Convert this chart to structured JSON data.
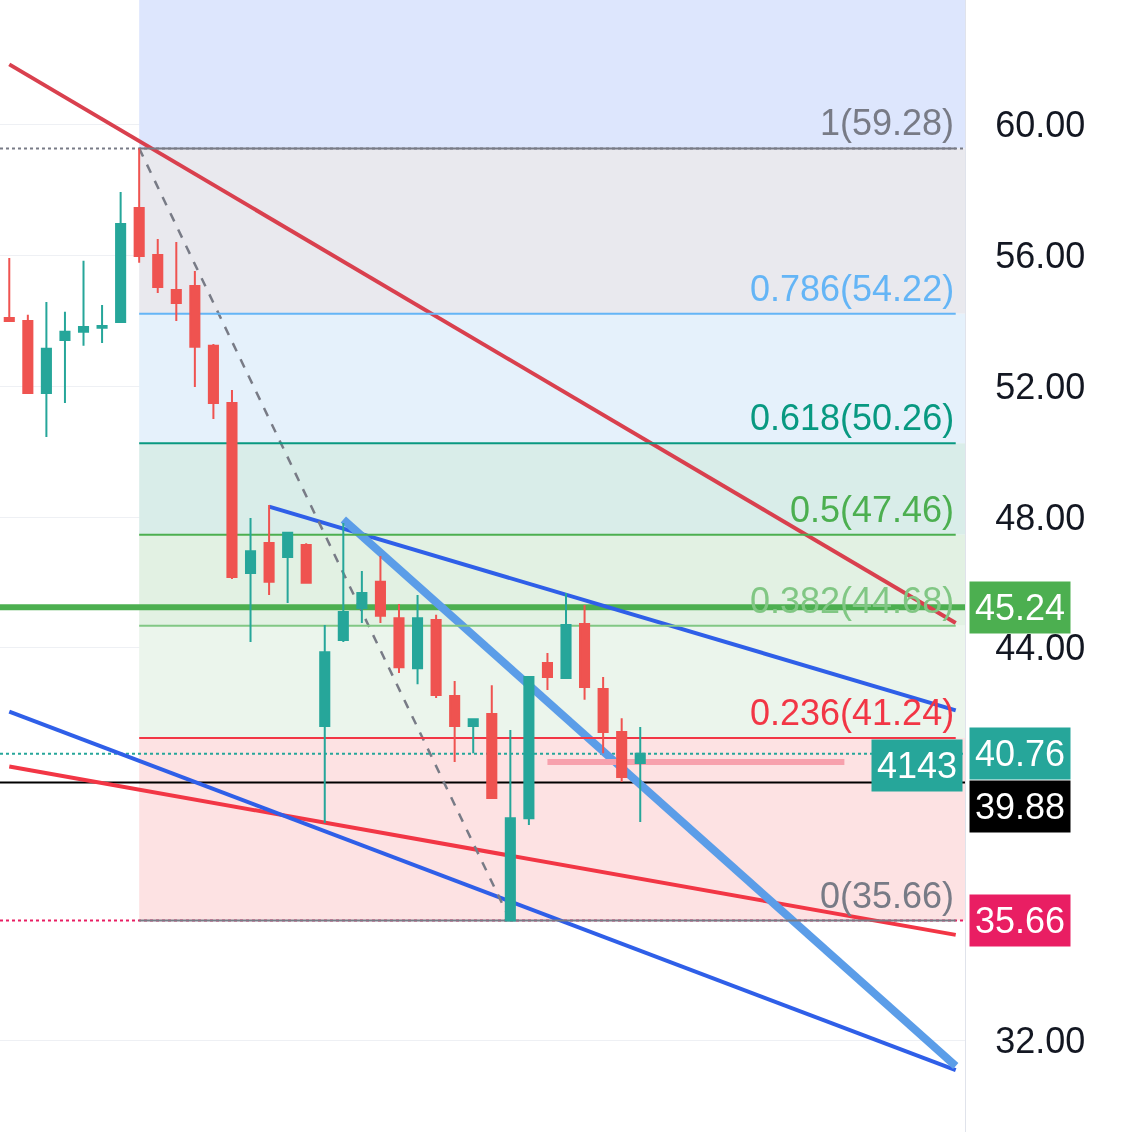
{
  "chart_data": {
    "type": "candlestick",
    "categories": [
      null,
      null,
      null,
      null,
      null,
      null,
      null,
      null,
      null,
      null,
      null,
      null,
      null,
      null,
      null,
      null,
      null,
      null,
      null,
      null,
      null,
      null,
      null,
      null,
      null,
      null,
      null,
      null,
      null,
      null,
      null,
      null,
      null,
      null,
      null,
      null,
      null,
      null,
      null,
      null,
      null,
      null,
      null,
      null,
      null,
      null,
      null,
      null,
      null,
      null,
      null,
      null
    ],
    "ohlc": [
      [
        54.09,
        55.93,
        54.0,
        54.0
      ],
      [
        54.0,
        54.19,
        51.8,
        51.8
      ],
      [
        51.8,
        54.58,
        50.45,
        53.15
      ],
      [
        53.42,
        54.28,
        51.49,
        53.67
      ],
      [
        53.67,
        55.84,
        53.24,
        53.82
      ],
      [
        53.79,
        54.49,
        53.33,
        53.85
      ],
      [
        53.97,
        57.95,
        53.97,
        56.97
      ],
      [
        57.46,
        59.28,
        55.78,
        55.99
      ],
      [
        56.02,
        56.51,
        54.86,
        55.04
      ],
      [
        54.95,
        56.42,
        54.0,
        54.55
      ],
      [
        55.07,
        55.53,
        51.98,
        53.21
      ],
      [
        53.24,
        53.3,
        51.0,
        51.49
      ],
      [
        51.49,
        51.89,
        46.11,
        46.17
      ],
      [
        46.29,
        47.97,
        44.18,
        46.96
      ],
      [
        47.21,
        48.37,
        45.62,
        46.02
      ],
      [
        46.78,
        47.55,
        45.37,
        47.52
      ],
      [
        47.15,
        47.2,
        45.96,
        45.99
      ],
      [
        41.61,
        44.7,
        38.64,
        43.87
      ],
      [
        44.24,
        47.82,
        44.18,
        45.1
      ],
      [
        45.22,
        46.35,
        44.76,
        45.68
      ],
      [
        46.02,
        46.81,
        44.76,
        44.98
      ],
      [
        44.91,
        45.34,
        43.23,
        43.41
      ],
      [
        43.38,
        45.62,
        42.89,
        44.91
      ],
      [
        44.85,
        45.01,
        42.47,
        42.56
      ],
      [
        42.53,
        42.99,
        40.51,
        41.61
      ],
      [
        41.61,
        41.82,
        40.78,
        41.82
      ],
      [
        41.98,
        42.86,
        39.41,
        39.41
      ],
      [
        35.66,
        41.49,
        35.66,
        38.79
      ],
      [
        38.79,
        43.11,
        38.58,
        43.11
      ],
      [
        43.54,
        43.84,
        42.71,
        43.11
      ],
      [
        43.08,
        45.68,
        43.08,
        44.7
      ],
      [
        44.73,
        45.31,
        42.41,
        42.8
      ],
      [
        42.74,
        43.11,
        40.78,
        41.43
      ],
      [
        41.43,
        41.85,
        39.9,
        40.05
      ],
      [
        40.48,
        41.58,
        38.67,
        40.76
      ],
      null,
      null,
      null,
      null,
      null,
      null,
      null,
      null,
      null,
      null,
      null,
      null,
      null,
      null,
      null,
      null,
      null
    ],
    "series": [
      {
        "type": "line",
        "color": "#d9404e",
        "values": [
          61.85,
          null,
          null,
          null,
          null,
          null,
          null,
          null,
          null,
          null,
          null,
          null,
          null,
          null,
          null,
          null,
          null,
          null,
          null,
          null,
          null,
          null,
          null,
          null,
          null,
          null,
          null,
          null,
          null,
          null,
          null,
          null,
          null,
          null,
          null,
          null,
          null,
          null,
          null,
          null,
          null,
          null,
          null,
          null,
          null,
          null,
          null,
          null,
          null,
          null,
          null,
          44.76
        ]
      },
      {
        "type": "line",
        "color": "#f23645",
        "values": [
          40.37,
          null,
          null,
          null,
          null,
          null,
          null,
          null,
          null,
          null,
          null,
          null,
          null,
          null,
          null,
          null,
          null,
          null,
          null,
          null,
          null,
          null,
          null,
          null,
          null,
          null,
          null,
          null,
          null,
          null,
          null,
          null,
          null,
          null,
          null,
          null,
          null,
          null,
          null,
          null,
          null,
          null,
          null,
          null,
          null,
          null,
          null,
          null,
          null,
          null,
          null,
          35.22
        ]
      },
      {
        "type": "line",
        "color": "#2f5fe8",
        "values": [
          42.05,
          null,
          null,
          null,
          null,
          null,
          null,
          null,
          null,
          null,
          null,
          null,
          null,
          null,
          null,
          null,
          null,
          null,
          null,
          null,
          null,
          null,
          null,
          null,
          null,
          null,
          null,
          null,
          null,
          null,
          null,
          null,
          null,
          null,
          null,
          null,
          null,
          null,
          null,
          null,
          null,
          null,
          null,
          null,
          null,
          null,
          null,
          null,
          null,
          null,
          null,
          31.08
        ]
      },
      {
        "type": "line",
        "color": "#2f5fe8",
        "values": [
          null,
          null,
          null,
          null,
          null,
          null,
          null,
          null,
          null,
          null,
          null,
          null,
          null,
          null,
          48.32,
          null,
          null,
          null,
          null,
          null,
          null,
          null,
          null,
          null,
          null,
          null,
          null,
          null,
          null,
          null,
          null,
          null,
          null,
          null,
          null,
          null,
          null,
          null,
          null,
          null,
          null,
          null,
          null,
          null,
          null,
          null,
          null,
          null,
          null,
          null,
          null,
          42.09
        ]
      },
      {
        "type": "line",
        "color": "#5b9de8",
        "values": [
          null,
          null,
          null,
          null,
          null,
          null,
          null,
          null,
          null,
          null,
          null,
          null,
          null,
          null,
          null,
          null,
          null,
          null,
          47.93,
          null,
          null,
          null,
          null,
          null,
          null,
          null,
          null,
          null,
          null,
          null,
          null,
          null,
          null,
          null,
          null,
          null,
          null,
          null,
          null,
          null,
          null,
          null,
          null,
          null,
          null,
          null,
          null,
          null,
          null,
          null,
          null,
          31.21
        ]
      },
      {
        "type": "line",
        "color": "#787b86",
        "line_style": "dashed",
        "values": [
          null,
          null,
          null,
          null,
          null,
          null,
          null,
          59.28,
          null,
          null,
          null,
          null,
          null,
          null,
          null,
          null,
          null,
          null,
          null,
          null,
          null,
          null,
          null,
          null,
          null,
          null,
          null,
          35.66,
          null,
          null,
          null,
          null,
          null,
          null,
          null,
          null,
          null,
          null,
          null,
          null,
          null,
          null,
          null,
          null,
          null,
          null,
          null,
          null,
          null,
          null,
          null,
          null
        ]
      },
      {
        "type": "line",
        "color": "#f7a1ad",
        "values": [
          null,
          null,
          null,
          null,
          null,
          null,
          null,
          null,
          null,
          null,
          null,
          null,
          null,
          null,
          null,
          null,
          null,
          null,
          null,
          null,
          null,
          null,
          null,
          null,
          null,
          null,
          null,
          null,
          null,
          40.51,
          null,
          null,
          null,
          null,
          null,
          null,
          null,
          null,
          null,
          null,
          null,
          null,
          null,
          null,
          null,
          40.51,
          null,
          null,
          null,
          null,
          null,
          null
        ]
      },
      {
        "type": "line",
        "color": "#787b86",
        "values": [
          null,
          null,
          null,
          null,
          null,
          null,
          null,
          59.28,
          null,
          null,
          null,
          null,
          null,
          null,
          null,
          null,
          null,
          null,
          null,
          null,
          null,
          null,
          null,
          null,
          null,
          null,
          null,
          null,
          null,
          null,
          null,
          null,
          null,
          null,
          null,
          null,
          null,
          null,
          null,
          null,
          null,
          null,
          null,
          null,
          null,
          null,
          null,
          null,
          null,
          null,
          null,
          59.28
        ],
        "value_labels": [
          null,
          null,
          null,
          null,
          null,
          null,
          null,
          null,
          null,
          null,
          null,
          null,
          null,
          null,
          null,
          null,
          null,
          null,
          null,
          null,
          null,
          null,
          null,
          null,
          null,
          null,
          null,
          null,
          null,
          null,
          null,
          null,
          null,
          null,
          null,
          null,
          null,
          null,
          null,
          null,
          null,
          null,
          null,
          null,
          null,
          null,
          null,
          null,
          null,
          null,
          null,
          "1(59.28)"
        ]
      },
      {
        "type": "line",
        "color": "#64b5f6",
        "values": [
          null,
          null,
          null,
          null,
          null,
          null,
          null,
          54.22,
          null,
          null,
          null,
          null,
          null,
          null,
          null,
          null,
          null,
          null,
          null,
          null,
          null,
          null,
          null,
          null,
          null,
          null,
          null,
          null,
          null,
          null,
          null,
          null,
          null,
          null,
          null,
          null,
          null,
          null,
          null,
          null,
          null,
          null,
          null,
          null,
          null,
          null,
          null,
          null,
          null,
          null,
          null,
          54.22
        ],
        "value_labels": [
          null,
          null,
          null,
          null,
          null,
          null,
          null,
          null,
          null,
          null,
          null,
          null,
          null,
          null,
          null,
          null,
          null,
          null,
          null,
          null,
          null,
          null,
          null,
          null,
          null,
          null,
          null,
          null,
          null,
          null,
          null,
          null,
          null,
          null,
          null,
          null,
          null,
          null,
          null,
          null,
          null,
          null,
          null,
          null,
          null,
          null,
          null,
          null,
          null,
          null,
          null,
          "0.786(54.22)"
        ]
      },
      {
        "type": "line",
        "color": "#089981",
        "values": [
          null,
          null,
          null,
          null,
          null,
          null,
          null,
          50.26,
          null,
          null,
          null,
          null,
          null,
          null,
          null,
          null,
          null,
          null,
          null,
          null,
          null,
          null,
          null,
          null,
          null,
          null,
          null,
          null,
          null,
          null,
          null,
          null,
          null,
          null,
          null,
          null,
          null,
          null,
          null,
          null,
          null,
          null,
          null,
          null,
          null,
          null,
          null,
          null,
          null,
          null,
          null,
          50.26
        ],
        "value_labels": [
          null,
          null,
          null,
          null,
          null,
          null,
          null,
          null,
          null,
          null,
          null,
          null,
          null,
          null,
          null,
          null,
          null,
          null,
          null,
          null,
          null,
          null,
          null,
          null,
          null,
          null,
          null,
          null,
          null,
          null,
          null,
          null,
          null,
          null,
          null,
          null,
          null,
          null,
          null,
          null,
          null,
          null,
          null,
          null,
          null,
          null,
          null,
          null,
          null,
          null,
          null,
          "0.618(50.26)"
        ]
      },
      {
        "type": "line",
        "color": "#4caf50",
        "values": [
          null,
          null,
          null,
          null,
          null,
          null,
          null,
          47.46,
          null,
          null,
          null,
          null,
          null,
          null,
          null,
          null,
          null,
          null,
          null,
          null,
          null,
          null,
          null,
          null,
          null,
          null,
          null,
          null,
          null,
          null,
          null,
          null,
          null,
          null,
          null,
          null,
          null,
          null,
          null,
          null,
          null,
          null,
          null,
          null,
          null,
          null,
          null,
          null,
          null,
          null,
          null,
          47.46
        ],
        "value_labels": [
          null,
          null,
          null,
          null,
          null,
          null,
          null,
          null,
          null,
          null,
          null,
          null,
          null,
          null,
          null,
          null,
          null,
          null,
          null,
          null,
          null,
          null,
          null,
          null,
          null,
          null,
          null,
          null,
          null,
          null,
          null,
          null,
          null,
          null,
          null,
          null,
          null,
          null,
          null,
          null,
          null,
          null,
          null,
          null,
          null,
          null,
          null,
          null,
          null,
          null,
          null,
          "0.5(47.46)"
        ]
      },
      {
        "type": "line",
        "color": "#81c784",
        "values": [
          null,
          null,
          null,
          null,
          null,
          null,
          null,
          44.68,
          null,
          null,
          null,
          null,
          null,
          null,
          null,
          null,
          null,
          null,
          null,
          null,
          null,
          null,
          null,
          null,
          null,
          null,
          null,
          null,
          null,
          null,
          null,
          null,
          null,
          null,
          null,
          null,
          null,
          null,
          null,
          null,
          null,
          null,
          null,
          null,
          null,
          null,
          null,
          null,
          null,
          null,
          null,
          44.68
        ],
        "value_labels": [
          null,
          null,
          null,
          null,
          null,
          null,
          null,
          null,
          null,
          null,
          null,
          null,
          null,
          null,
          null,
          null,
          null,
          null,
          null,
          null,
          null,
          null,
          null,
          null,
          null,
          null,
          null,
          null,
          null,
          null,
          null,
          null,
          null,
          null,
          null,
          null,
          null,
          null,
          null,
          null,
          null,
          null,
          null,
          null,
          null,
          null,
          null,
          null,
          null,
          null,
          null,
          "0.382(44.68)"
        ]
      },
      {
        "type": "line",
        "color": "#f23645",
        "values": [
          null,
          null,
          null,
          null,
          null,
          null,
          null,
          41.24,
          null,
          null,
          null,
          null,
          null,
          null,
          null,
          null,
          null,
          null,
          null,
          null,
          null,
          null,
          null,
          null,
          null,
          null,
          null,
          null,
          null,
          null,
          null,
          null,
          null,
          null,
          null,
          null,
          null,
          null,
          null,
          null,
          null,
          null,
          null,
          null,
          null,
          null,
          null,
          null,
          null,
          null,
          null,
          41.24
        ],
        "value_labels": [
          null,
          null,
          null,
          null,
          null,
          null,
          null,
          null,
          null,
          null,
          null,
          null,
          null,
          null,
          null,
          null,
          null,
          null,
          null,
          null,
          null,
          null,
          null,
          null,
          null,
          null,
          null,
          null,
          null,
          null,
          null,
          null,
          null,
          null,
          null,
          null,
          null,
          null,
          null,
          null,
          null,
          null,
          null,
          null,
          null,
          null,
          null,
          null,
          null,
          null,
          null,
          "0.236(41.24)"
        ]
      },
      {
        "type": "line",
        "color": "#787b86",
        "values": [
          null,
          null,
          null,
          null,
          null,
          null,
          null,
          35.66,
          null,
          null,
          null,
          null,
          null,
          null,
          null,
          null,
          null,
          null,
          null,
          null,
          null,
          null,
          null,
          null,
          null,
          null,
          null,
          null,
          null,
          null,
          null,
          null,
          null,
          null,
          null,
          null,
          null,
          null,
          null,
          null,
          null,
          null,
          null,
          null,
          null,
          null,
          null,
          null,
          null,
          null,
          null,
          35.66
        ],
        "value_labels": [
          null,
          null,
          null,
          null,
          null,
          null,
          null,
          null,
          null,
          null,
          null,
          null,
          null,
          null,
          null,
          null,
          null,
          null,
          null,
          null,
          null,
          null,
          null,
          null,
          null,
          null,
          null,
          null,
          null,
          null,
          null,
          null,
          null,
          null,
          null,
          null,
          null,
          null,
          null,
          null,
          null,
          null,
          null,
          null,
          null,
          null,
          null,
          null,
          null,
          null,
          null,
          "0(35.66)"
        ]
      }
    ],
    "bands": [
      {
        "axis": "y",
        "from": 59.28,
        "to": 63.82,
        "color": "#dde6fd"
      },
      {
        "axis": "y",
        "from": 54.22,
        "to": 59.28,
        "color": "#e9e9ee"
      },
      {
        "axis": "y",
        "from": 50.26,
        "to": 54.22,
        "color": "#e5f1fb"
      },
      {
        "axis": "y",
        "from": 47.46,
        "to": 50.26,
        "color": "#d9ede9"
      },
      {
        "axis": "y",
        "from": 44.68,
        "to": 47.46,
        "color": "#e2f1e3"
      },
      {
        "axis": "y",
        "from": 41.24,
        "to": 44.68,
        "color": "#ebf5ec"
      },
      {
        "axis": "y",
        "from": 35.66,
        "to": 41.24,
        "color": "#fde2e3"
      }
    ],
    "ref_lines": [
      {
        "axis": "y",
        "value": 45.24,
        "label": "45.24",
        "color": "#4caf50",
        "line_style": "solid"
      },
      {
        "axis": "y",
        "value": 40.76,
        "label": "40.76",
        "color": "#26a69a",
        "line_style": "dotted"
      },
      {
        "axis": "y",
        "value": 39.88,
        "label": "39.88",
        "color": "#000000",
        "line_style": "solid"
      },
      {
        "axis": "y",
        "value": 35.66,
        "label": "35.66",
        "color": "#e91e63",
        "line_style": "dotted"
      },
      {
        "axis": "y",
        "value": 59.28,
        "color": "#787b86",
        "line_style": "dotted"
      }
    ],
    "annotations": [
      {
        "text": "4143",
        "y": 40.76
      }
    ],
    "ylim": [
      29.19,
      63.82
    ],
    "yticks": [
      {
        "value": 32,
        "label": "32.00"
      },
      {
        "value": 44,
        "label": "44.00"
      },
      {
        "value": 48,
        "label": "48.00"
      },
      {
        "value": 52,
        "label": "52.00"
      },
      {
        "value": 56,
        "label": "56.00"
      },
      {
        "value": 60,
        "label": "60.00"
      }
    ],
    "grid": "y",
    "tick_labels": "y"
  }
}
